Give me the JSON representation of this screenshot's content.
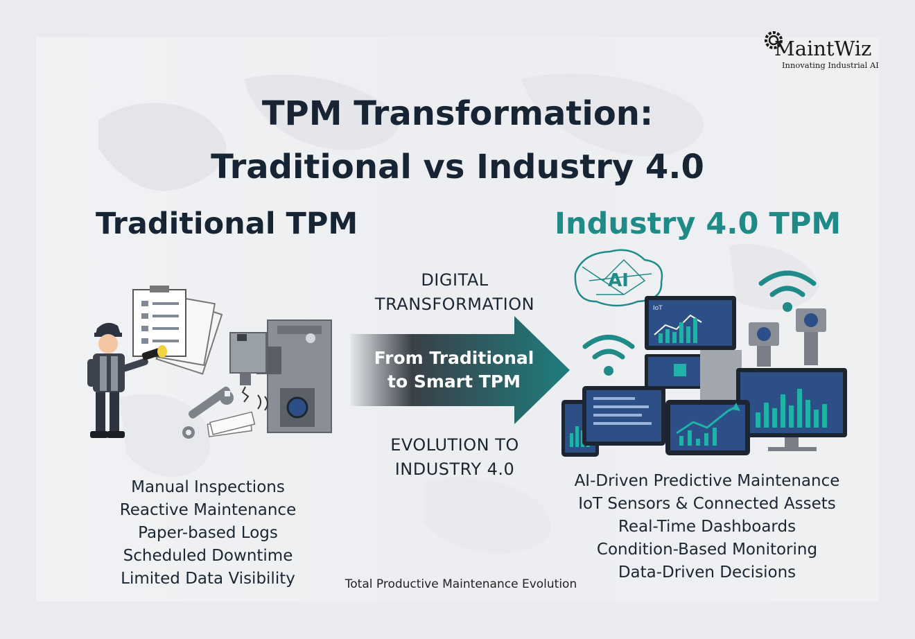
{
  "brand": {
    "name": "MaintWiz",
    "tagline": "Innovating Industrial AI"
  },
  "title": {
    "line1": "TPM Transformation:",
    "line2": "Traditional vs Industry 4.0"
  },
  "traditional": {
    "heading": "Traditional TPM",
    "items": [
      "Manual Inspections",
      "Reactive Maintenance",
      "Paper-based Logs",
      "Scheduled Downtime",
      "Limited Data Visibility"
    ]
  },
  "transition": {
    "top_line1": "DIGITAL",
    "top_line2": "TRANSFORMATION",
    "arrow_line1": "From Traditional",
    "arrow_line2": "to Smart TPM",
    "bottom_line1": "EVOLUTION TO",
    "bottom_line2": "INDUSTRY 4.0"
  },
  "industry40": {
    "heading": "Industry 4.0 TPM",
    "ai_badge": "AI",
    "iot_label": "IoT",
    "items": [
      "AI-Driven Predictive Maintenance",
      "IoT Sensors & Connected Assets",
      "Real-Time Dashboards",
      "Condition-Based Monitoring",
      "Data-Driven Decisions"
    ]
  },
  "caption": "Total Productive Maintenance Evolution",
  "colors": {
    "navy": "#172433",
    "teal": "#1f8a88",
    "screen_blue": "#2b4f86",
    "machine_gray": "#8a8f97"
  }
}
